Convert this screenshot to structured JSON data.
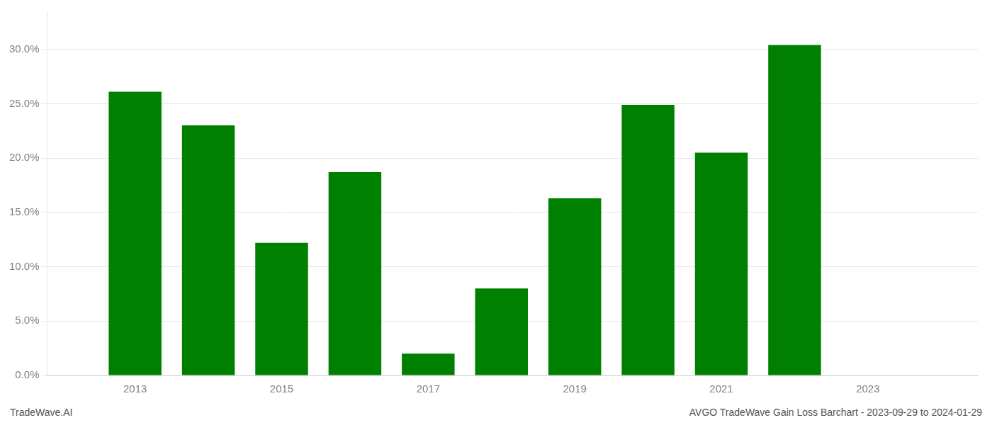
{
  "chart_data": {
    "type": "bar",
    "x": [
      2013,
      2014,
      2015,
      2016,
      2017,
      2018,
      2019,
      2020,
      2021,
      2022
    ],
    "values": [
      0.261,
      0.23,
      0.122,
      0.187,
      0.02,
      0.08,
      0.163,
      0.249,
      0.205,
      0.304
    ],
    "color": "#008000",
    "xlim": [
      2011.8,
      2024.5
    ],
    "xticks": [
      2013,
      2015,
      2017,
      2019,
      2021,
      2023
    ],
    "ylim": [
      0.0,
      0.335
    ],
    "yticks": [
      {
        "value": 0.0,
        "label": "0.0%"
      },
      {
        "value": 0.05,
        "label": "5.0%"
      },
      {
        "value": 0.1,
        "label": "10.0%"
      },
      {
        "value": 0.15,
        "label": "15.0%"
      },
      {
        "value": 0.2,
        "label": "20.0%"
      },
      {
        "value": 0.25,
        "label": "25.0%"
      },
      {
        "value": 0.3,
        "label": "30.0%"
      }
    ],
    "grid": "y",
    "annotations": [
      "TradeWave.AI",
      "AVGO TradeWave Gain Loss Barchart - 2023-09-29 to 2024-01-29"
    ]
  }
}
